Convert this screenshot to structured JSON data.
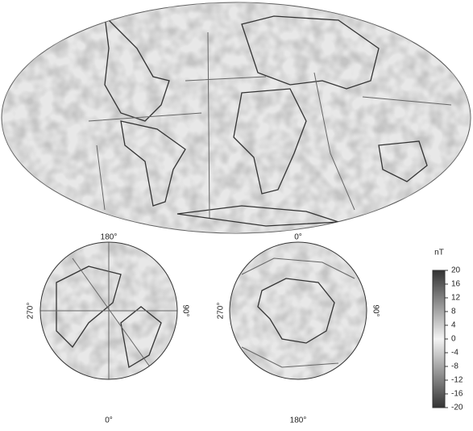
{
  "north_polar": {
    "top": "180°",
    "bottom": "0°",
    "left": "270°",
    "right": "90°"
  },
  "south_polar": {
    "top": "0°",
    "bottom": "180°",
    "left": "270°",
    "right": "90°"
  },
  "colorbar": {
    "unit": "nT",
    "lim": [
      -20,
      20
    ],
    "ticks": [
      20,
      16,
      12,
      8,
      4,
      0,
      -4,
      -8,
      -12,
      -16,
      -20
    ]
  }
}
